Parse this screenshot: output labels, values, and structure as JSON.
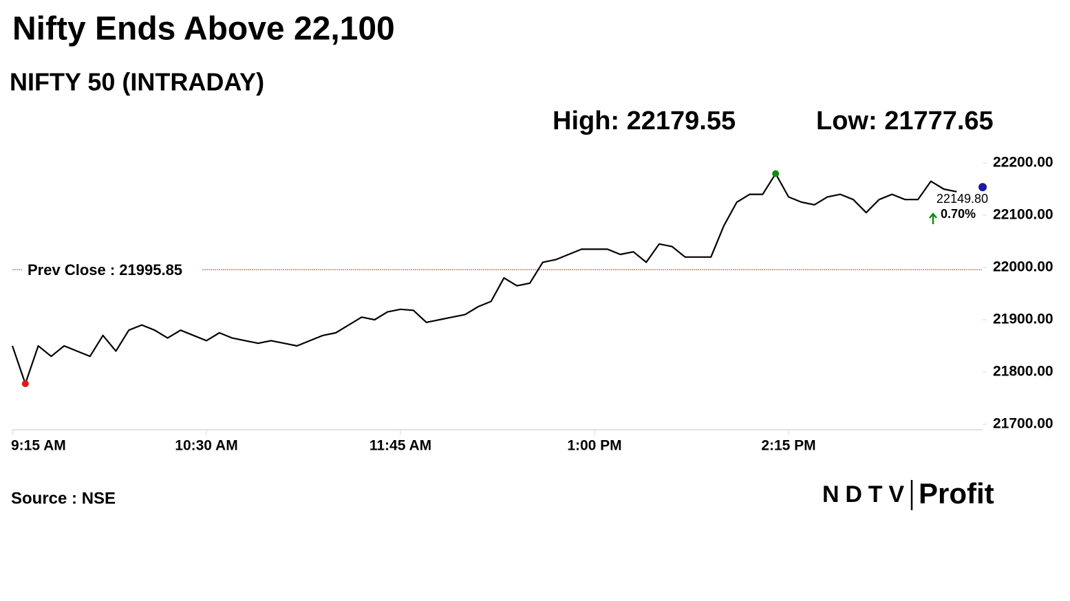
{
  "chart_data": {
    "type": "line",
    "title": "Nifty Ends Above 22,100",
    "subtitle": "NIFTY 50 (INTRADAY)",
    "high": {
      "label": "High: 22179.55",
      "value": 22179.55,
      "x": "2:10 PM",
      "color": "#138a13"
    },
    "low": {
      "label": "Low: 21777.65",
      "value": 21777.65,
      "x": "9:20 AM",
      "color": "#e8141b"
    },
    "close": {
      "value": 22149.8,
      "label": "22149.80",
      "x": "3:30 PM",
      "color": "#1a1aa6"
    },
    "change": {
      "value": 0.7,
      "label": "0.70%",
      "color": "#138a13"
    },
    "reference_line": {
      "value": 21995.85,
      "label": "Prev Close : 21995.85",
      "color": "#c0392b"
    },
    "x": [
      "9:15 AM",
      "9:20 AM",
      "9:25 AM",
      "9:30 AM",
      "9:35 AM",
      "9:40 AM",
      "9:45 AM",
      "9:50 AM",
      "9:55 AM",
      "10:00 AM",
      "10:05 AM",
      "10:10 AM",
      "10:15 AM",
      "10:20 AM",
      "10:25 AM",
      "10:30 AM",
      "10:35 AM",
      "10:40 AM",
      "10:45 AM",
      "10:50 AM",
      "10:55 AM",
      "11:00 AM",
      "11:05 AM",
      "11:10 AM",
      "11:15 AM",
      "11:20 AM",
      "11:25 AM",
      "11:30 AM",
      "11:35 AM",
      "11:40 AM",
      "11:45 AM",
      "11:50 AM",
      "11:55 AM",
      "12:00 PM",
      "12:05 PM",
      "12:10 PM",
      "12:15 PM",
      "12:20 PM",
      "12:25 PM",
      "12:30 PM",
      "12:35 PM",
      "12:40 PM",
      "12:45 PM",
      "12:50 PM",
      "12:55 PM",
      "1:00 PM",
      "1:05 PM",
      "1:10 PM",
      "1:15 PM",
      "1:20 PM",
      "1:25 PM",
      "1:30 PM",
      "1:35 PM",
      "1:40 PM",
      "1:45 PM",
      "1:50 PM",
      "1:55 PM",
      "2:00 PM",
      "2:05 PM",
      "2:10 PM",
      "2:15 PM",
      "2:20 PM",
      "2:25 PM",
      "2:30 PM",
      "2:35 PM",
      "2:40 PM",
      "2:45 PM",
      "2:50 PM",
      "2:55 PM",
      "3:00 PM",
      "3:05 PM",
      "3:10 PM",
      "3:15 PM",
      "3:20 PM",
      "3:25 PM",
      "3:30 PM"
    ],
    "values": [
      21850,
      21777.65,
      21850,
      21830,
      21850,
      21840,
      21830,
      21870,
      21840,
      21880,
      21890,
      21880,
      21865,
      21880,
      21870,
      21860,
      21875,
      21865,
      21860,
      21855,
      21860,
      21855,
      21850,
      21860,
      21870,
      21875,
      21890,
      21905,
      21900,
      21915,
      21920,
      21918,
      21895,
      21900,
      21905,
      21910,
      21925,
      21935,
      21980,
      21965,
      21970,
      22010,
      22015,
      22025,
      22035,
      22035,
      22035,
      22025,
      22030,
      22010,
      22045,
      22040,
      22020,
      22020,
      22020,
      22080,
      22125,
      22140,
      22140,
      22179.55,
      22135,
      22125,
      22120,
      22135,
      22140,
      22130,
      22105,
      22130,
      22140,
      22130,
      22130,
      22165,
      22150,
      22145,
      null,
      null
    ],
    "color": "#000000",
    "ylim": [
      21700,
      22200
    ],
    "yticks": [
      {
        "value": 21700,
        "label": "21700.00"
      },
      {
        "value": 21800,
        "label": "21800.00"
      },
      {
        "value": 21900,
        "label": "21900.00"
      },
      {
        "value": 22000,
        "label": "22000.00"
      },
      {
        "value": 22100,
        "label": "22100.00"
      },
      {
        "value": 22200,
        "label": "22200.00"
      }
    ],
    "xticks": [
      "9:15 AM",
      "10:30 AM",
      "11:45 AM",
      "1:00 PM",
      "2:15 PM"
    ],
    "source": "Source : NSE",
    "logo": [
      "NDTV",
      "Profit"
    ]
  }
}
